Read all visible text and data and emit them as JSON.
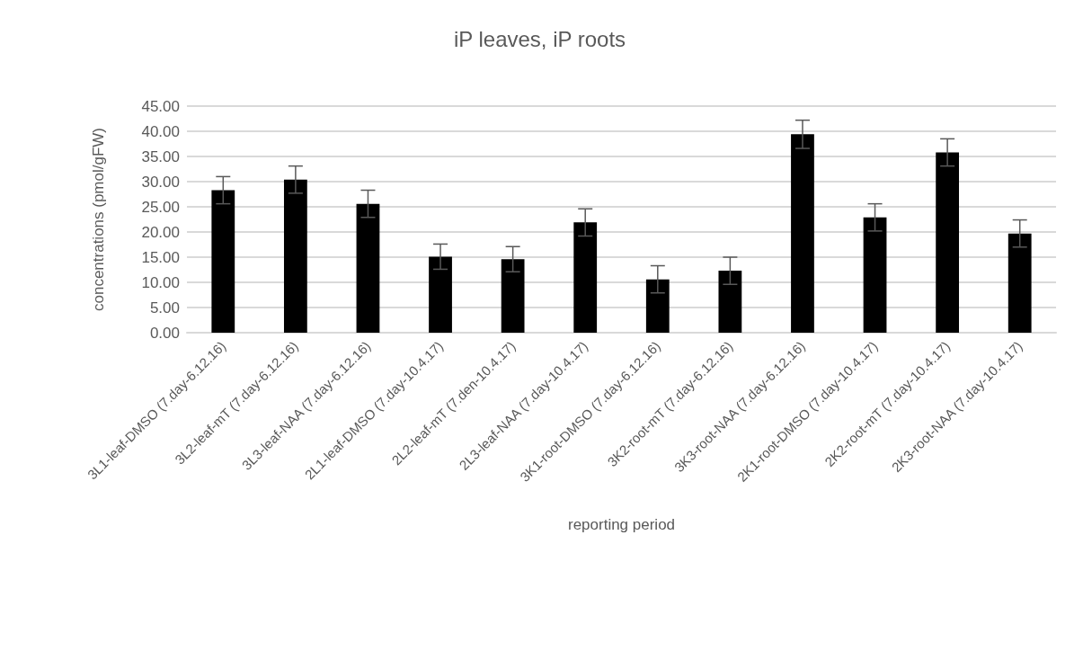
{
  "chart_data": {
    "type": "bar",
    "title": "iP leaves, iP roots",
    "xlabel": "reporting period",
    "ylabel": "concentrations (pmol/gFW)",
    "categories": [
      "3L1-leaf-DMSO (7.day-6.12.16)",
      "3L2-leaf-mT (7.day-6.12.16)",
      "3L3-leaf-NAA (7.day-6.12.16)",
      "2L1-leaf-DMSO (7.day-10.4.17)",
      "2L2-leaf-mT (7.den-10.4.17)",
      "2L3-leaf-NAA (7.day-10.4.17)",
      "3K1-root-DMSO (7.day-6.12.16)",
      "3K2-root-mT (7.day-6.12.16)",
      "3K3-root-NAA (7.day-6.12.16)",
      "2K1-root-DMSO (7.day-10.4.17)",
      "2K2-root-mT (7.day-10.4.17)",
      "2K3-root-NAA (7.day-10.4.17)"
    ],
    "values": [
      28.3,
      30.4,
      25.6,
      15.1,
      14.6,
      21.9,
      10.6,
      12.3,
      39.4,
      22.9,
      35.8,
      19.7
    ],
    "errors": [
      2.7,
      2.7,
      2.7,
      2.5,
      2.5,
      2.7,
      2.7,
      2.7,
      2.8,
      2.7,
      2.7,
      2.7
    ],
    "color": "#000000",
    "ylim": [
      0,
      45
    ],
    "yticks": [
      {
        "value": 0,
        "label": "0.00"
      },
      {
        "value": 5,
        "label": "5.00"
      },
      {
        "value": 10,
        "label": "10.00"
      },
      {
        "value": 15,
        "label": "15.00"
      },
      {
        "value": 20,
        "label": "20.00"
      },
      {
        "value": 25,
        "label": "25.00"
      },
      {
        "value": 30,
        "label": "30.00"
      },
      {
        "value": 35,
        "label": "35.00"
      },
      {
        "value": 40,
        "label": "40.00"
      },
      {
        "value": 45,
        "label": "45.00"
      }
    ],
    "grid": "y"
  }
}
